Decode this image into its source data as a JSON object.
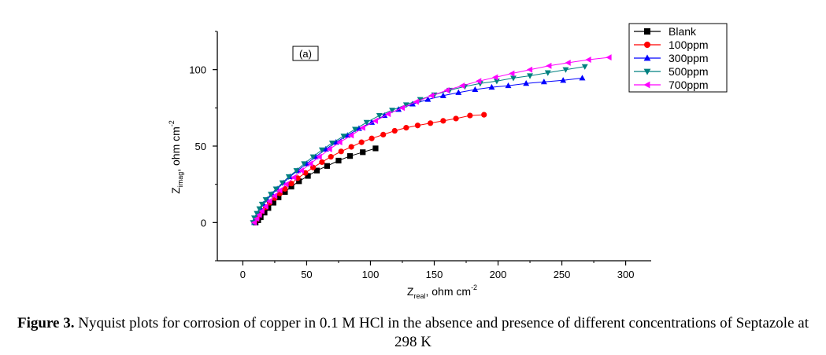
{
  "chart_data": {
    "type": "scatter",
    "panel_label": "(a)",
    "xlabel": {
      "main": "Z",
      "sub": "real",
      "rest": ", ohm cm",
      "sup": "-2"
    },
    "ylabel": {
      "main": "Z",
      "sub": "imag",
      "rest": ", ohm cm",
      "sup": "-2"
    },
    "xlim": [
      -20,
      320
    ],
    "ylim": [
      -25,
      125
    ],
    "xticks": [
      0,
      50,
      100,
      150,
      200,
      250,
      300
    ],
    "yticks": [
      0,
      50,
      100
    ],
    "legend_position": "top-right",
    "series": [
      {
        "name": "Blank",
        "color": "#000000",
        "marker": "square",
        "x": [
          10,
          12,
          14,
          17,
          20,
          24,
          28,
          33,
          38,
          44,
          51,
          58,
          66,
          75,
          84,
          94,
          104
        ],
        "y": [
          0,
          1.5,
          3.5,
          6.5,
          9.5,
          13,
          16.5,
          20,
          23.5,
          27,
          30.5,
          34,
          37,
          40.5,
          43.5,
          46,
          48.5
        ]
      },
      {
        "name": "100ppm",
        "color": "#ff0000",
        "marker": "circle",
        "x": [
          9,
          11,
          13,
          15,
          18,
          21,
          25,
          29,
          33,
          38,
          43,
          49,
          55,
          62,
          69,
          77,
          85,
          93,
          101,
          110,
          119,
          128,
          137,
          147,
          157,
          167,
          178,
          189
        ],
        "y": [
          0,
          2.5,
          5,
          7.5,
          10,
          13,
          16,
          19,
          22,
          25.5,
          29,
          32.5,
          36,
          39.5,
          43,
          46.5,
          49.5,
          52.5,
          55,
          57.5,
          60,
          62,
          63.5,
          65,
          66.5,
          68,
          70,
          70.5
        ]
      },
      {
        "name": "300ppm",
        "color": "#0000ff",
        "marker": "triangle-up",
        "x": [
          9,
          10,
          12,
          14,
          16,
          19,
          23,
          27,
          32,
          37,
          43,
          50,
          57,
          65,
          73,
          82,
          91,
          101,
          111,
          122,
          133,
          145,
          157,
          169,
          182,
          195,
          208,
          222,
          236,
          251,
          266
        ],
        "y": [
          0,
          3,
          6,
          9,
          12,
          15,
          18.5,
          22,
          26,
          30,
          34,
          38.5,
          43,
          48,
          52.5,
          57,
          61.5,
          65.5,
          70,
          74,
          77.5,
          80.5,
          83,
          85,
          87,
          88.5,
          89.5,
          91,
          92,
          93,
          94.5
        ]
      },
      {
        "name": "500ppm",
        "color": "#008080",
        "marker": "triangle-down",
        "x": [
          8,
          9,
          11,
          13,
          15,
          18,
          22,
          26,
          31,
          36,
          42,
          48,
          55,
          62,
          70,
          79,
          88,
          97,
          107,
          117,
          128,
          139,
          150,
          162,
          174,
          186,
          199,
          212,
          225,
          239,
          253,
          268
        ],
        "y": [
          0,
          3,
          6,
          9,
          12,
          15,
          18.5,
          22,
          26,
          30,
          34,
          38.5,
          43,
          47.5,
          52,
          56.5,
          61,
          65.5,
          70,
          73.5,
          77,
          80.5,
          83.5,
          86.5,
          89,
          91,
          92.5,
          94.5,
          96,
          98,
          100,
          102
        ]
      },
      {
        "name": "700ppm",
        "color": "#ff00ff",
        "marker": "triangle-left",
        "x": [
          9,
          11,
          13,
          15,
          18,
          21,
          25,
          29,
          34,
          40,
          46,
          53,
          60,
          68,
          76,
          85,
          94,
          104,
          114,
          125,
          136,
          148,
          160,
          172,
          185,
          198,
          211,
          225,
          240,
          255,
          271,
          287
        ],
        "y": [
          0,
          2.5,
          5,
          7.5,
          10.5,
          14,
          17.5,
          21,
          25,
          29.5,
          34,
          38.5,
          43,
          48,
          52.5,
          57,
          62,
          66.5,
          71,
          75,
          79,
          83,
          86.5,
          89.5,
          92.5,
          95,
          97.5,
          100,
          102.5,
          104.5,
          106.5,
          108
        ]
      }
    ]
  },
  "caption": {
    "label": "Figure 3.",
    "text": "Nyquist plots for corrosion of copper in 0.1 M HCl in the absence and presence of different concentrations of Septazole at 298 K"
  }
}
